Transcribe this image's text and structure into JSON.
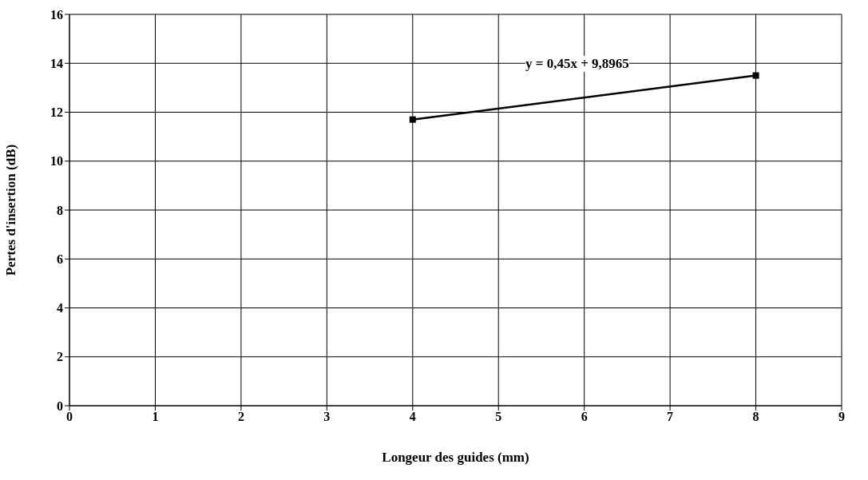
{
  "chart_data": {
    "type": "line",
    "xlabel": "Longeur des guides (mm)",
    "ylabel": "Pertes d'insertion (dB)",
    "x": [
      4,
      8
    ],
    "series": [
      {
        "color": "#000000",
        "values": [
          11.7,
          13.5
        ]
      }
    ],
    "xlim": [
      0,
      9
    ],
    "xticks": [
      0,
      1,
      2,
      3,
      4,
      5,
      6,
      7,
      8,
      9
    ],
    "ylim": [
      0,
      16
    ],
    "yticks": [
      0,
      2,
      4,
      6,
      8,
      10,
      12,
      14,
      16
    ],
    "grid": true,
    "marker": "square",
    "line_style": "solid",
    "annotations": [
      "y = 0,45x + 9,8965"
    ]
  }
}
